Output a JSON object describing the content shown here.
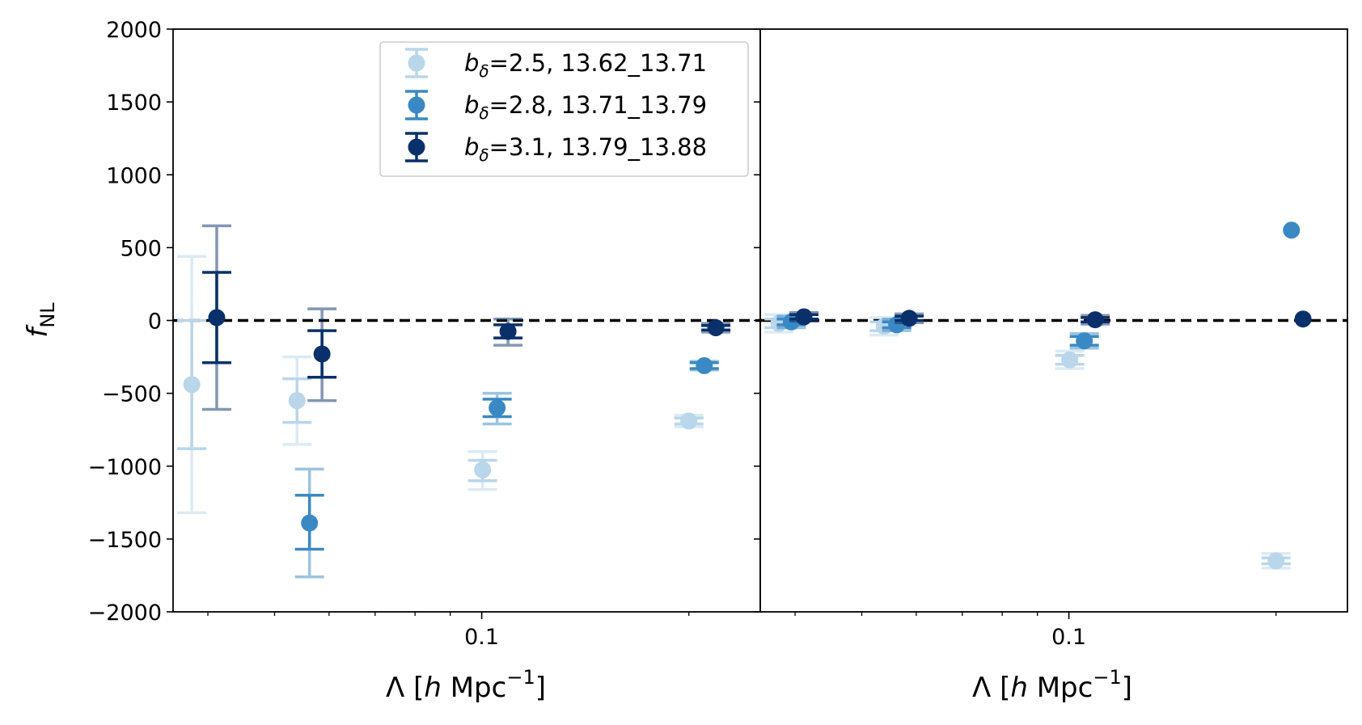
{
  "chart_data": {
    "type": "scatter",
    "ylabel_main": "f",
    "ylabel_sub": "NL",
    "xlabel_main": "Λ [",
    "xlabel_italic": "h",
    "xlabel_unit": " Mpc",
    "xlabel_exp": "−1",
    "xlabel_close": "]",
    "ylim": [
      -2000,
      2000
    ],
    "y_ticks": [
      2000,
      1500,
      1000,
      500,
      0,
      -500,
      -1000,
      -1500,
      -2000
    ],
    "y_tick_labels": [
      "2000",
      "1500",
      "1000",
      "500",
      "0",
      "−500",
      "−1000",
      "−1500",
      "−2000"
    ],
    "x_scale": "log",
    "xlim": [
      0.0356,
      0.254
    ],
    "x_major_tick": 0.1,
    "x_major_tick_label": "0.1",
    "x_minor_ticks": [
      0.04,
      0.05,
      0.06,
      0.07,
      0.08,
      0.09,
      0.2
    ],
    "reference_line_y": 0,
    "legend": {
      "position": "upper center",
      "entries": [
        {
          "sym": "b",
          "sub": "δ",
          "rest": "=2.5, 13.62_13.71"
        },
        {
          "sym": "b",
          "sub": "δ",
          "rest": "=2.8, 13.71_13.79"
        },
        {
          "sym": "b",
          "sub": "δ",
          "rest": "=3.1, 13.79_13.88"
        }
      ]
    },
    "series_colors": [
      "#b9d6ea",
      "#3a89c4",
      "#0a306b"
    ],
    "panels": [
      {
        "series": [
          {
            "name": "b_δ=2.5, 13.62_13.71",
            "points": [
              {
                "x": 0.0379,
                "y": -440,
                "inner": [
                  -880,
                  0
                ],
                "outer": [
                  -1320,
                  440
                ]
              },
              {
                "x": 0.0539,
                "y": -550,
                "inner": [
                  -700,
                  -400
                ],
                "outer": [
                  -850,
                  -250
                ]
              },
              {
                "x": 0.1003,
                "y": -1025,
                "inner": [
                  -1100,
                  -960
                ],
                "outer": [
                  -1160,
                  -900
                ]
              },
              {
                "x": 0.2,
                "y": -690,
                "inner": [
                  -710,
                  -670
                ],
                "outer": [
                  -730,
                  -650
                ]
              }
            ]
          },
          {
            "name": "b_δ=2.8, 13.71_13.79",
            "points": [
              {
                "x": 0.0562,
                "y": -1390,
                "inner": [
                  -1570,
                  -1200
                ],
                "outer": [
                  -1760,
                  -1020
                ]
              },
              {
                "x": 0.1053,
                "y": -600,
                "inner": [
                  -660,
                  -540
                ],
                "outer": [
                  -710,
                  -500
                ]
              },
              {
                "x": 0.2106,
                "y": -310,
                "inner": [
                  -330,
                  -290
                ],
                "outer": [
                  -340,
                  -280
                ]
              }
            ]
          },
          {
            "name": "b_δ=3.1, 13.79_13.88",
            "points": [
              {
                "x": 0.0412,
                "y": 20,
                "inner": [
                  -290,
                  330
                ],
                "outer": [
                  -610,
                  650
                ]
              },
              {
                "x": 0.0586,
                "y": -230,
                "inner": [
                  -390,
                  -70
                ],
                "outer": [
                  -550,
                  80
                ]
              },
              {
                "x": 0.1092,
                "y": -75,
                "inner": [
                  -120,
                  -30
                ],
                "outer": [
                  -170,
                  10
                ]
              },
              {
                "x": 0.2189,
                "y": -50,
                "inner": [
                  -65,
                  -35
                ],
                "outer": [
                  -80,
                  -20
                ]
              }
            ]
          }
        ]
      },
      {
        "series": [
          {
            "name": "b_δ=2.5, 13.62_13.71",
            "points": [
              {
                "x": 0.0379,
                "y": -20,
                "inner": [
                  -50,
                  10
                ],
                "outer": [
                  -80,
                  40
                ]
              },
              {
                "x": 0.0539,
                "y": -40,
                "inner": [
                  -70,
                  -10
                ],
                "outer": [
                  -100,
                  20
                ]
              },
              {
                "x": 0.1003,
                "y": -270,
                "inner": [
                  -300,
                  -240
                ],
                "outer": [
                  -330,
                  -210
                ]
              },
              {
                "x": 0.2,
                "y": -1650,
                "inner": [
                  -1670,
                  -1630
                ],
                "outer": [
                  -1700,
                  -1600
                ]
              }
            ]
          },
          {
            "name": "b_δ=2.8, 13.71_13.79",
            "points": [
              {
                "x": 0.0395,
                "y": -10,
                "inner": [
                  -30,
                  10
                ],
                "outer": [
                  -50,
                  30
                ]
              },
              {
                "x": 0.0562,
                "y": -30,
                "inner": [
                  -50,
                  -10
                ],
                "outer": [
                  -70,
                  10
                ]
              },
              {
                "x": 0.1053,
                "y": -140,
                "inner": [
                  -170,
                  -110
                ],
                "outer": [
                  -190,
                  -90
                ]
              },
              {
                "x": 0.2106,
                "y": 620
              }
            ]
          },
          {
            "name": "b_δ=3.1, 13.79_13.88",
            "points": [
              {
                "x": 0.0412,
                "y": 25,
                "inner": [
                  10,
                  40
                ],
                "outer": [
                  -5,
                  55
                ]
              },
              {
                "x": 0.0586,
                "y": 15,
                "inner": [
                  0,
                  30
                ],
                "outer": [
                  -15,
                  45
                ]
              },
              {
                "x": 0.1092,
                "y": 5,
                "inner": [
                  -10,
                  20
                ],
                "outer": [
                  -25,
                  35
                ]
              },
              {
                "x": 0.2189,
                "y": 10
              }
            ]
          }
        ]
      }
    ]
  }
}
